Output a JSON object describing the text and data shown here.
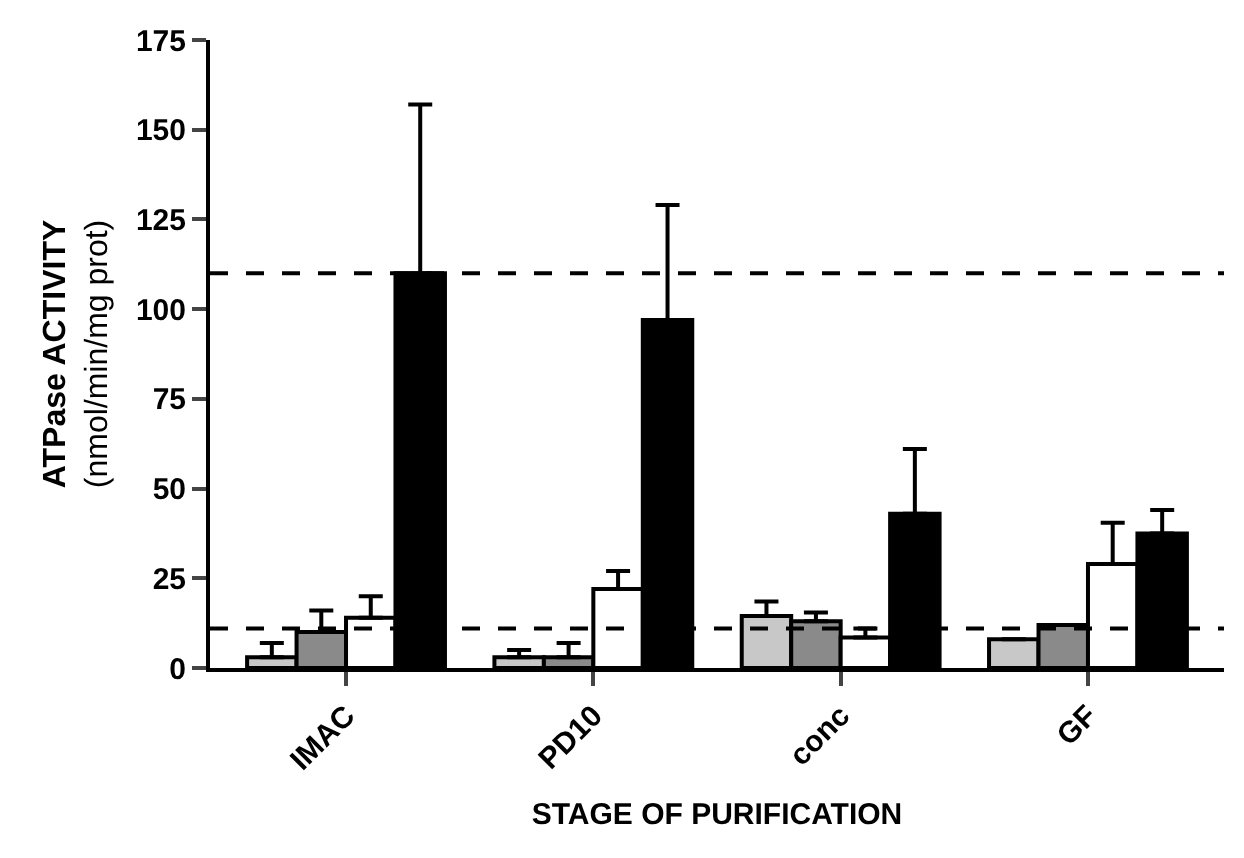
{
  "chart_data": {
    "type": "bar",
    "xlabel": "STAGE OF PURIFICATION",
    "ylabel": "ATPase ACTIVITY\n(nmol/min/mg prot)",
    "categories": [
      "IMAC",
      "PD10",
      "conc",
      "GF"
    ],
    "series": [
      {
        "color": "#c8c8c8",
        "values": [
          3,
          3,
          14.5,
          8
        ],
        "errors": [
          [
            3,
            7
          ],
          [
            3,
            5
          ],
          [
            14.5,
            18.5
          ],
          null
        ]
      },
      {
        "color": "#8a8a8a",
        "values": [
          10,
          3,
          13,
          12
        ],
        "errors": [
          [
            10,
            16
          ],
          [
            3,
            7
          ],
          [
            13,
            15.5
          ],
          null
        ]
      },
      {
        "color": "#ffffff",
        "values": [
          14,
          22,
          8.5,
          29
        ],
        "errors": [
          [
            14,
            20
          ],
          [
            22,
            27
          ],
          [
            8.5,
            11
          ],
          [
            29,
            40.5
          ]
        ]
      },
      {
        "color": "#000000",
        "values": [
          110,
          97,
          43,
          37.5
        ],
        "errors": [
          [
            110,
            157
          ],
          [
            97,
            129
          ],
          [
            43,
            61
          ],
          [
            37.5,
            44
          ]
        ]
      }
    ],
    "ylim": [
      0,
      175
    ],
    "yticks": [
      0,
      25,
      50,
      75,
      100,
      125,
      150,
      175
    ],
    "grid": false,
    "ref_lines": [
      {
        "axis": "y",
        "value": 110,
        "line_style": "dashed"
      },
      {
        "axis": "y",
        "value": 11,
        "line_style": "dashed"
      }
    ]
  }
}
